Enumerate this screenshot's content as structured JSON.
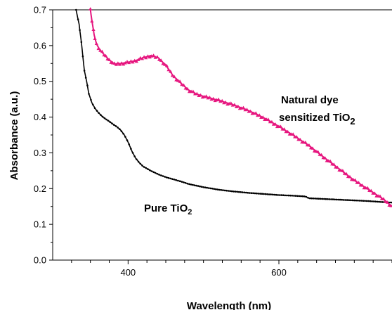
{
  "chart_data": {
    "type": "line",
    "xlabel": "Wavelength (nm)",
    "ylabel": "Absorbance (a.u.)",
    "xlim": [
      300,
      750
    ],
    "ylim": [
      0.0,
      0.7
    ],
    "xticks": [
      400,
      600
    ],
    "xtick_labels": [
      "400",
      "600"
    ],
    "yticks": [
      0.0,
      0.1,
      0.2,
      0.3,
      0.4,
      0.5,
      0.6,
      0.7
    ],
    "ytick_labels": [
      "0.0",
      "0.1",
      "0.2",
      "0.3",
      "0.4",
      "0.5",
      "0.6",
      "0.7"
    ],
    "grid": false,
    "legend": "none",
    "annotations": [
      {
        "name": "pure",
        "parts": [
          {
            "text": "Pure TiO",
            "role": "base"
          },
          {
            "text": "2",
            "role": "sub"
          }
        ]
      },
      {
        "name": "dye",
        "line1": "Natural dye",
        "parts": [
          {
            "text": "sensitized TiO",
            "role": "base"
          },
          {
            "text": "2",
            "role": "sub2"
          }
        ]
      }
    ],
    "series": [
      {
        "key": "pure",
        "color": "#000000",
        "marker": "dot",
        "x": [
          331,
          335,
          338,
          340,
          342,
          345,
          348,
          352,
          356,
          360,
          365,
          370,
          375,
          380,
          385,
          390,
          395,
          400,
          405,
          410,
          415,
          420,
          430,
          440,
          450,
          460,
          470,
          480,
          500,
          520,
          540,
          560,
          580,
          600,
          620,
          635,
          640,
          660,
          680,
          700,
          720,
          740,
          750
        ],
        "y": [
          0.7,
          0.66,
          0.61,
          0.57,
          0.53,
          0.5,
          0.465,
          0.44,
          0.425,
          0.414,
          0.403,
          0.395,
          0.388,
          0.38,
          0.373,
          0.364,
          0.35,
          0.33,
          0.305,
          0.285,
          0.272,
          0.262,
          0.25,
          0.24,
          0.232,
          0.226,
          0.22,
          0.213,
          0.204,
          0.197,
          0.192,
          0.188,
          0.185,
          0.182,
          0.18,
          0.178,
          0.173,
          0.171,
          0.169,
          0.167,
          0.165,
          0.162,
          0.161
        ]
      },
      {
        "key": "dye",
        "color": "#e6177f",
        "marker": "triangle",
        "x": [
          350,
          352,
          355,
          358,
          362,
          368,
          375,
          382,
          390,
          400,
          410,
          420,
          430,
          440,
          450,
          460,
          470,
          480,
          490,
          500,
          520,
          540,
          560,
          580,
          600,
          620,
          640,
          660,
          680,
          700,
          720,
          740,
          750
        ],
        "y": [
          0.7,
          0.67,
          0.63,
          0.605,
          0.59,
          0.575,
          0.56,
          0.548,
          0.55,
          0.553,
          0.558,
          0.566,
          0.572,
          0.566,
          0.545,
          0.515,
          0.495,
          0.476,
          0.465,
          0.458,
          0.447,
          0.434,
          0.418,
          0.398,
          0.374,
          0.348,
          0.32,
          0.287,
          0.255,
          0.223,
          0.196,
          0.168,
          0.15
        ]
      }
    ]
  }
}
